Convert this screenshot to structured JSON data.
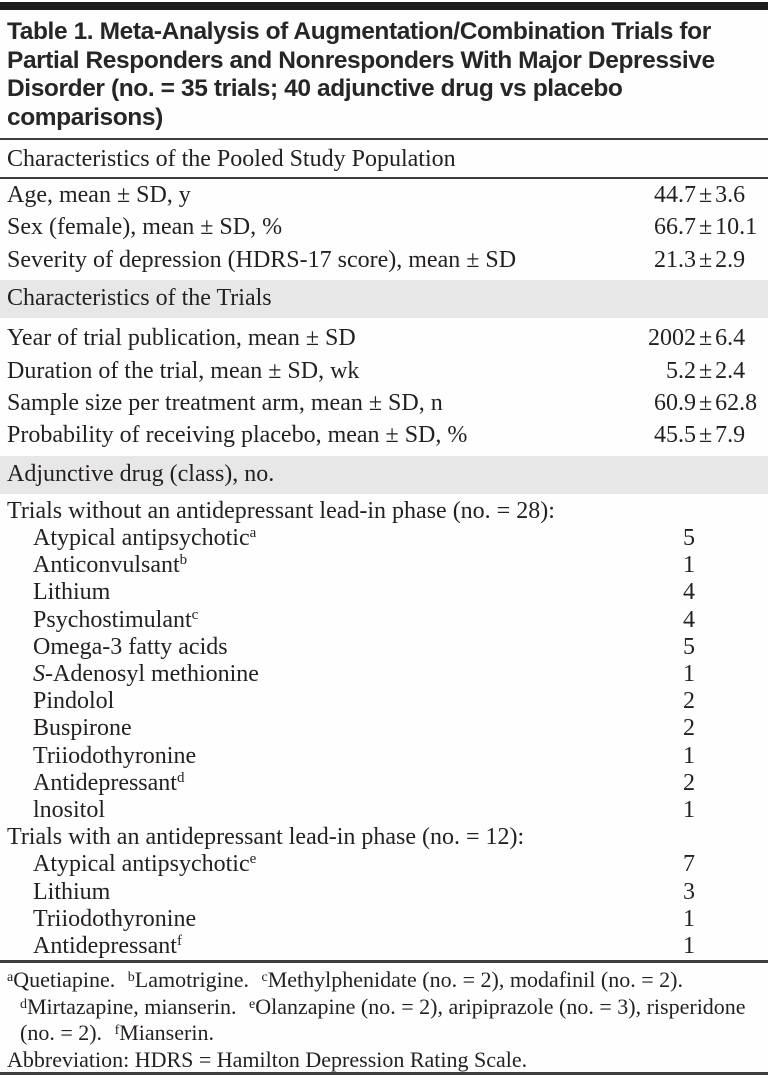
{
  "table": {
    "title": "Table 1. Meta-Analysis of Augmentation/Combination Trials for Partial Responders and Nonresponders With Major Depressive Disorder (no. = 35 trials; 40 adjunctive drug vs placebo comparisons)",
    "sections": [
      {
        "type": "header-plain",
        "label": "Characteristics of the Pooled Study Population"
      },
      {
        "type": "rows",
        "rows": [
          {
            "label": "Age, mean ± SD, y",
            "value": "44.7 ± 3.6",
            "value_type": "stat",
            "indent": 0
          },
          {
            "label": "Sex (female), mean ± SD, %",
            "value": "66.7 ± 10.1",
            "value_type": "stat",
            "indent": 0
          },
          {
            "label": "Severity of depression (HDRS-17 score), mean ± SD",
            "value": "21.3 ± 2.9",
            "value_type": "stat",
            "indent": 0
          }
        ]
      },
      {
        "type": "header-gray",
        "label": "Characteristics of the Trials"
      },
      {
        "type": "rows",
        "rows": [
          {
            "label": "Year of trial publication, mean ± SD",
            "value": "2002 ± 6.4",
            "value_type": "stat",
            "indent": 0
          },
          {
            "label": "Duration of the trial, mean ± SD, wk",
            "value": "5.2 ± 2.4",
            "value_type": "stat",
            "indent": 0
          },
          {
            "label": "Sample size per treatment arm, mean ± SD, n",
            "value": "60.9 ± 62.8",
            "value_type": "stat",
            "indent": 0
          },
          {
            "label": "Probability of receiving placebo, mean ± SD, %",
            "value": "45.5 ± 7.9",
            "value_type": "stat",
            "indent": 0
          }
        ]
      },
      {
        "type": "header-gray",
        "label": "Adjunctive drug (class), no."
      },
      {
        "type": "rows",
        "rows": [
          {
            "label": "Trials without an antidepressant lead-in phase (no. = 28):",
            "value": "",
            "value_type": "none",
            "indent": 0
          },
          {
            "label": "Atypical antipsychotic",
            "sup": "a",
            "value": "5",
            "value_type": "count",
            "indent": 1
          },
          {
            "label": "Anticonvulsant",
            "sup": "b",
            "value": "1",
            "value_type": "count",
            "indent": 1
          },
          {
            "label": "Lithium",
            "value": "4",
            "value_type": "count",
            "indent": 1
          },
          {
            "label": "Psychostimulant",
            "sup": "c",
            "value": "4",
            "value_type": "count",
            "indent": 1
          },
          {
            "label": "Omega-3 fatty acids",
            "value": "5",
            "value_type": "count",
            "indent": 1
          },
          {
            "italic_prefix": "S",
            "label": "-Adenosyl methionine",
            "value": "1",
            "value_type": "count",
            "indent": 1
          },
          {
            "label": "Pindolol",
            "value": "2",
            "value_type": "count",
            "indent": 1
          },
          {
            "label": "Buspirone",
            "value": "2",
            "value_type": "count",
            "indent": 1
          },
          {
            "label": "Triiodothyronine",
            "value": "1",
            "value_type": "count",
            "indent": 1
          },
          {
            "label": "Antidepressant",
            "sup": "d",
            "value": "2",
            "value_type": "count",
            "indent": 1
          },
          {
            "label": "lnositol",
            "value": "1",
            "value_type": "count",
            "indent": 1
          },
          {
            "label": "Trials with an antidepressant lead-in phase (no. = 12):",
            "value": "",
            "value_type": "none",
            "indent": 0
          },
          {
            "label": "Atypical antipsychotic",
            "sup": "e",
            "value": "7",
            "value_type": "count",
            "indent": 1
          },
          {
            "label": "Lithium",
            "value": "3",
            "value_type": "count",
            "indent": 1
          },
          {
            "label": "Triiodothyronine",
            "value": "1",
            "value_type": "count",
            "indent": 1
          },
          {
            "label": "Antidepressant",
            "sup": "f",
            "value": "1",
            "value_type": "count",
            "indent": 1
          }
        ]
      }
    ],
    "footnotes": {
      "segments": [
        {
          "sup": "a",
          "text": "Quetiapine."
        },
        {
          "sup": "b",
          "text": "Lamotrigine."
        },
        {
          "sup": "c",
          "text": "Methylphenidate (no. = 2), modafinil (no. = 2)."
        },
        {
          "sup": "d",
          "text": "Mirtazapine, mianserin."
        },
        {
          "sup": "e",
          "text": "Olanzapine (no. = 2), aripiprazole (no. = 3), risperidone (no. = 2)."
        },
        {
          "sup": "f",
          "text": "Mianserin."
        }
      ],
      "abbreviation": "Abbreviation: HDRS = Hamilton Depression Rating Scale."
    },
    "colors": {
      "band_gray": "#e8e7e7",
      "rule_dark": "#3d3d3d",
      "top_bar": "#1b1b1b",
      "text": "#241f21"
    }
  }
}
